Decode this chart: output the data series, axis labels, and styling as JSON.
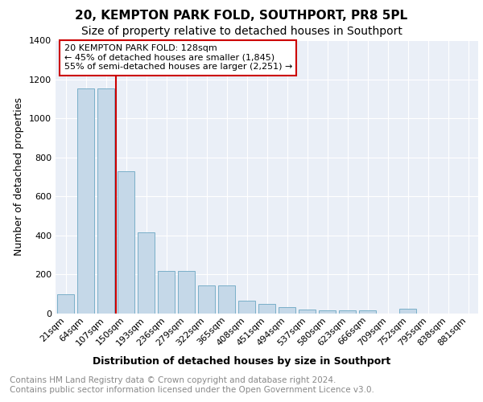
{
  "title": "20, KEMPTON PARK FOLD, SOUTHPORT, PR8 5PL",
  "subtitle": "Size of property relative to detached houses in Southport",
  "xlabel": "Distribution of detached houses by size in Southport",
  "ylabel": "Number of detached properties",
  "categories": [
    "21sqm",
    "64sqm",
    "107sqm",
    "150sqm",
    "193sqm",
    "236sqm",
    "279sqm",
    "322sqm",
    "365sqm",
    "408sqm",
    "451sqm",
    "494sqm",
    "537sqm",
    "580sqm",
    "623sqm",
    "666sqm",
    "709sqm",
    "752sqm",
    "795sqm",
    "838sqm",
    "881sqm"
  ],
  "values": [
    100,
    1155,
    1155,
    730,
    415,
    220,
    220,
    145,
    145,
    65,
    50,
    33,
    22,
    18,
    15,
    15,
    0,
    25,
    0,
    0,
    0
  ],
  "bar_color": "#c5d8e8",
  "bar_edge_color": "#7aafc8",
  "vline_color": "#cc0000",
  "vline_x": 2.5,
  "annotation_text": "20 KEMPTON PARK FOLD: 128sqm\n← 45% of detached houses are smaller (1,845)\n55% of semi-detached houses are larger (2,251) →",
  "annotation_box_color": "white",
  "annotation_box_edge": "#cc0000",
  "ylim": [
    0,
    1400
  ],
  "yticks": [
    0,
    200,
    400,
    600,
    800,
    1000,
    1200,
    1400
  ],
  "plot_bg_color": "#eaeff7",
  "grid_color": "#ffffff",
  "footer": "Contains HM Land Registry data © Crown copyright and database right 2024.\nContains public sector information licensed under the Open Government Licence v3.0.",
  "title_fontsize": 11,
  "subtitle_fontsize": 10,
  "xlabel_fontsize": 9,
  "ylabel_fontsize": 9,
  "tick_fontsize": 8,
  "annotation_fontsize": 8,
  "footer_fontsize": 7.5
}
